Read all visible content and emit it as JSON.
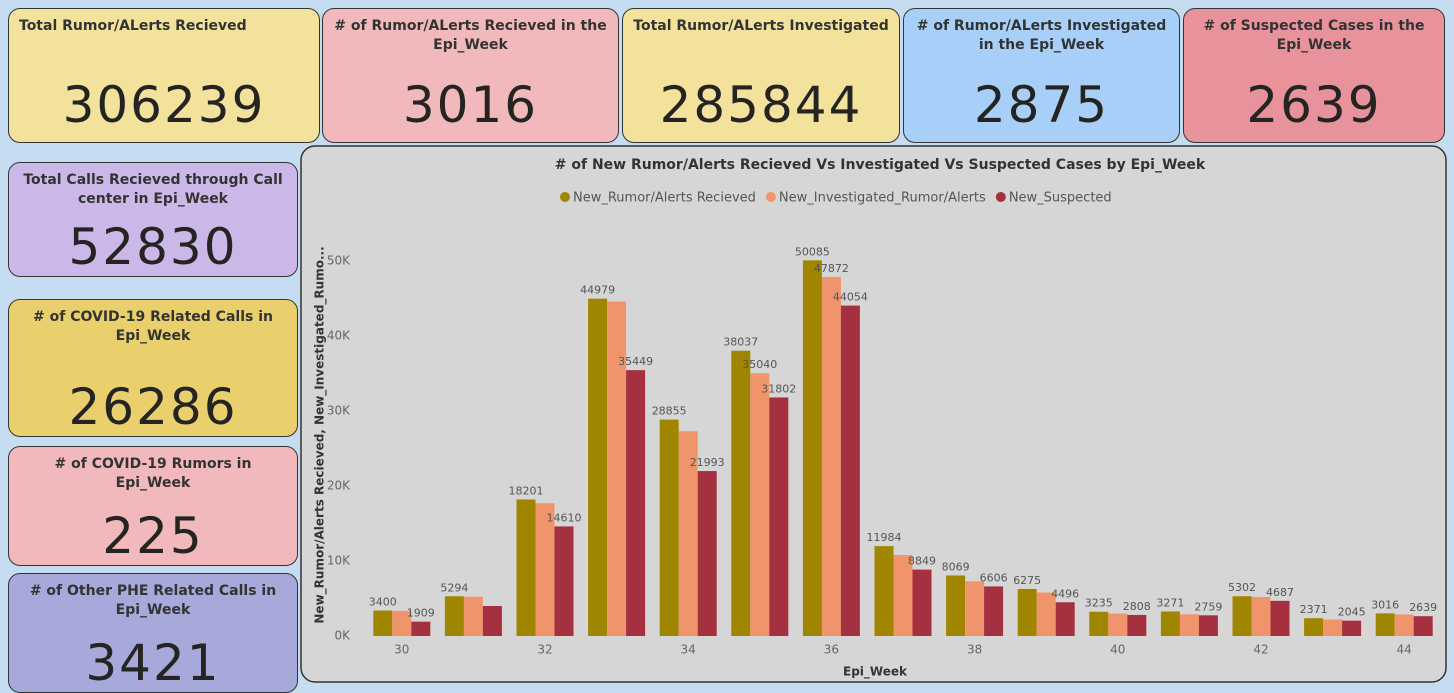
{
  "cards": [
    {
      "title": "Total Rumor/ALerts Recieved",
      "value": 306239,
      "color": "#f2e29c"
    },
    {
      "title": "# of Rumor/ALerts Recieved in the Epi_Week",
      "value": 3016,
      "color": "#f2b9bd"
    },
    {
      "title": "Total Rumor/ALerts Investigated",
      "value": 285844,
      "color": "#f2e29c"
    },
    {
      "title": "# of Rumor/ALerts Investigated in the Epi_Week",
      "value": 2875,
      "color": "#a7cff7"
    },
    {
      "title": "# of Suspected Cases in the Epi_Week",
      "value": 2639,
      "color": "#e8939b"
    },
    {
      "title": "Total Calls Recieved through Call center in Epi_Week",
      "value": 52830,
      "color": "#cbb8e8"
    },
    {
      "title": "# of COVID-19 Related Calls in Epi_Week",
      "value": 26286,
      "color": "#e9d06c"
    },
    {
      "title": "# of COVID-19 Rumors in Epi_Week",
      "value": 225,
      "color": "#f2b9bd"
    },
    {
      "title": "# of Other PHE Related Calls in Epi_Week",
      "value": 3421,
      "color": "#a6a9da"
    }
  ],
  "chart_data": {
    "type": "bar",
    "title": "# of New Rumor/Alerts Recieved Vs Investigated Vs Suspected Cases by Epi_Week",
    "x_label": "Epi_Week",
    "y_label": "New_Rumor/Alerts Recieved, New_Investigated_Rumo...",
    "categories": [
      "30",
      null,
      "32",
      null,
      "34",
      null,
      "36",
      null,
      "38",
      null,
      "40",
      null,
      "42",
      null,
      "44"
    ],
    "series": [
      {
        "name": "New_Rumor/Alerts Recieved",
        "color": "#a08500",
        "values": [
          3400,
          5294,
          18201,
          44979,
          28855,
          38037,
          50085,
          11984,
          8069,
          6275,
          3235,
          3271,
          5302,
          2371,
          3016
        ],
        "value_labels": [
          "3400",
          "5294",
          "18201",
          "44979",
          "28855",
          "38037",
          "50085",
          "11984",
          "8069",
          "6275",
          "3235",
          "3271",
          "5302",
          "2371",
          "3016"
        ]
      },
      {
        "name": "New_Investigated_Rumor/Alerts",
        "color": "#f0956b",
        "values": [
          3350,
          5250,
          17700,
          44600,
          27300,
          35040,
          47872,
          10800,
          7300,
          5800,
          3000,
          2900,
          5200,
          2200,
          2875
        ],
        "value_labels": [
          null,
          null,
          null,
          null,
          null,
          "35040",
          "47872",
          null,
          null,
          null,
          null,
          null,
          null,
          null,
          null
        ]
      },
      {
        "name": "New_Suspected",
        "color": "#a5303f",
        "values": [
          1909,
          4000,
          14610,
          35449,
          21993,
          31802,
          44054,
          8849,
          6606,
          4496,
          2808,
          2759,
          4687,
          2045,
          2639
        ],
        "value_labels": [
          "1909",
          null,
          "14610",
          "35449",
          "21993",
          "31802",
          "44054",
          "8849",
          "6606",
          "4496",
          "2808",
          "2759",
          "4687",
          "2045",
          "2639"
        ]
      }
    ],
    "ylim": [
      0,
      54000
    ],
    "yticks": [
      {
        "value": 0,
        "label": "0K"
      },
      {
        "value": 10000,
        "label": "10K"
      },
      {
        "value": 20000,
        "label": "20K"
      },
      {
        "value": 30000,
        "label": "30K"
      },
      {
        "value": 40000,
        "label": "40K"
      },
      {
        "value": 50000,
        "label": "50K"
      }
    ],
    "grid": false,
    "legend": "top"
  }
}
